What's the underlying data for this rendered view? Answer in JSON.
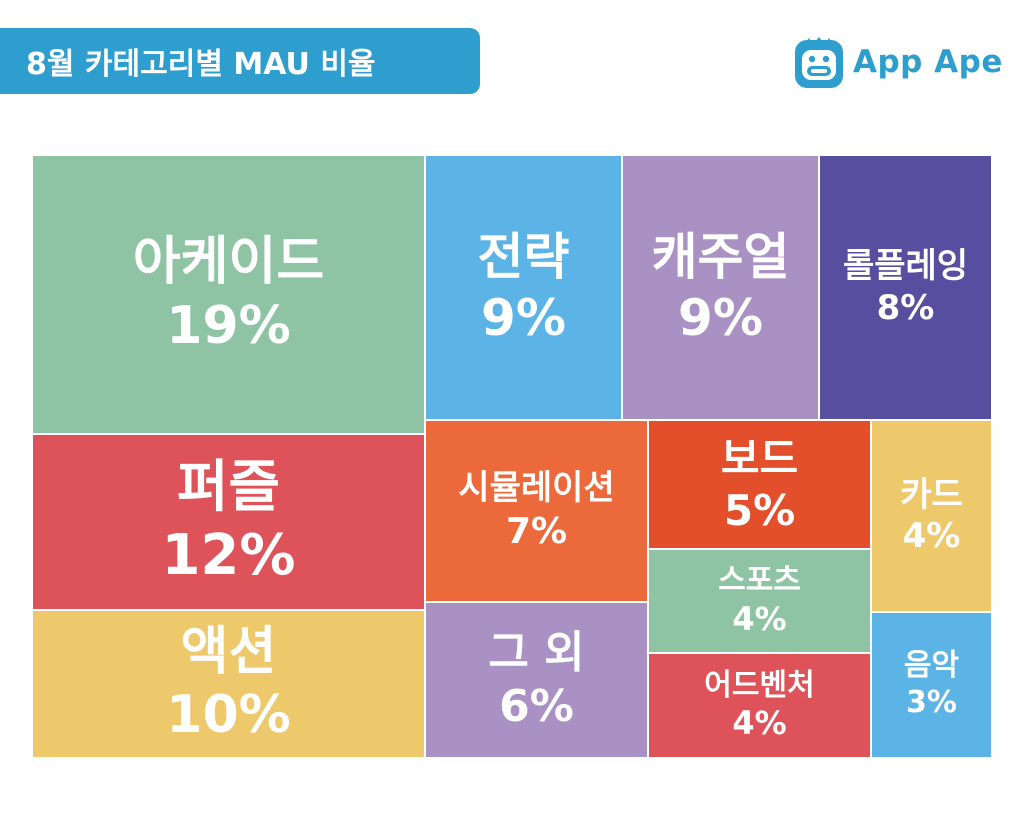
{
  "header": {
    "title": "8월 카테고리별 MAU 비율"
  },
  "brand": {
    "name": "App Ape",
    "logo_icon": "ape-face-icon",
    "color": "#2e9ecf"
  },
  "chart_data": {
    "type": "treemap",
    "title": "8월 카테고리별 MAU 비율",
    "unit": "%",
    "items": [
      {
        "label": "아케이드",
        "value": 19,
        "display": "19%",
        "color": "#8ec4a4"
      },
      {
        "label": "퍼즐",
        "value": 12,
        "display": "12%",
        "color": "#de5359"
      },
      {
        "label": "액션",
        "value": 10,
        "display": "10%",
        "color": "#edc96c"
      },
      {
        "label": "전략",
        "value": 9,
        "display": "9%",
        "color": "#5bb4e5"
      },
      {
        "label": "캐주얼",
        "value": 9,
        "display": "9%",
        "color": "#a991c4"
      },
      {
        "label": "롤플레잉",
        "value": 8,
        "display": "8%",
        "color": "#584ea0"
      },
      {
        "label": "시뮬레이션",
        "value": 7,
        "display": "7%",
        "color": "#ec693c"
      },
      {
        "label": "그 외",
        "value": 6,
        "display": "6%",
        "color": "#a991c4"
      },
      {
        "label": "보드",
        "value": 5,
        "display": "5%",
        "color": "#e34f2b"
      },
      {
        "label": "스포츠",
        "value": 4,
        "display": "4%",
        "color": "#8ec4a4"
      },
      {
        "label": "어드벤처",
        "value": 4,
        "display": "4%",
        "color": "#de5359"
      },
      {
        "label": "카드",
        "value": 4,
        "display": "4%",
        "color": "#edc96c"
      },
      {
        "label": "음악",
        "value": 3,
        "display": "3%",
        "color": "#5bb4e5"
      }
    ]
  }
}
